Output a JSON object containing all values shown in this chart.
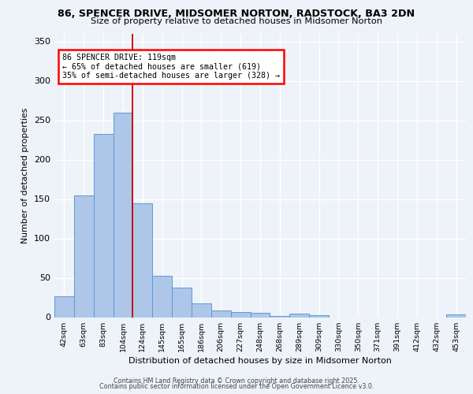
{
  "title1": "86, SPENCER DRIVE, MIDSOMER NORTON, RADSTOCK, BA3 2DN",
  "title2": "Size of property relative to detached houses in Midsomer Norton",
  "xlabel": "Distribution of detached houses by size in Midsomer Norton",
  "ylabel": "Number of detached properties",
  "footer1": "Contains HM Land Registry data © Crown copyright and database right 2025.",
  "footer2": "Contains public sector information licensed under the Open Government Licence v3.0.",
  "annotation_title": "86 SPENCER DRIVE: 119sqm",
  "annotation_line1": "← 65% of detached houses are smaller (619)",
  "annotation_line2": "35% of semi-detached houses are larger (328) →",
  "bar_labels": [
    "42sqm",
    "63sqm",
    "83sqm",
    "104sqm",
    "124sqm",
    "145sqm",
    "165sqm",
    "186sqm",
    "206sqm",
    "227sqm",
    "248sqm",
    "268sqm",
    "289sqm",
    "309sqm",
    "330sqm",
    "350sqm",
    "371sqm",
    "391sqm",
    "412sqm",
    "432sqm",
    "453sqm"
  ],
  "bar_values": [
    27,
    155,
    233,
    260,
    145,
    53,
    38,
    18,
    9,
    7,
    6,
    2,
    5,
    3,
    0,
    0,
    0,
    0,
    0,
    0,
    4
  ],
  "bar_color": "#aec6e8",
  "bar_edge_color": "#5b9bd5",
  "vline_x_index": 4,
  "vline_color": "#cc0000",
  "bg_color": "#eef2f9",
  "grid_color": "#ffffff",
  "ylim": [
    0,
    360
  ],
  "yticks": [
    0,
    50,
    100,
    150,
    200,
    250,
    300,
    350
  ]
}
